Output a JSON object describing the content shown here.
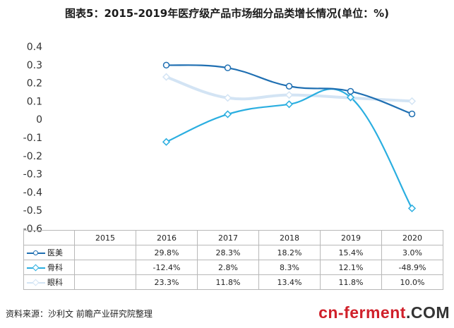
{
  "chart_data": {
    "type": "line",
    "title": "图表5：2015-2019年医疗级产品市场细分品类增长情况(单位：%)",
    "categories": [
      "2015",
      "2016",
      "2017",
      "2018",
      "2019",
      "2020"
    ],
    "yticks": [
      "0.4",
      "0.3",
      "0.2",
      "0.1",
      "0",
      "-0.1",
      "-0.2",
      "-0.3",
      "-0.4",
      "-0.5",
      "-0.6"
    ],
    "ylim": [
      -0.6,
      0.4
    ],
    "series": [
      {
        "name": "医美",
        "color": "#1f6fb2",
        "marker": "circle",
        "values": [
          null,
          0.298,
          0.283,
          0.182,
          0.154,
          0.03
        ],
        "labels": [
          "",
          "29.8%",
          "28.3%",
          "18.2%",
          "15.4%",
          "3.0%"
        ]
      },
      {
        "name": "骨科",
        "color": "#2aaee0",
        "marker": "diamond",
        "values": [
          null,
          -0.124,
          0.028,
          0.083,
          0.121,
          -0.489
        ],
        "labels": [
          "",
          "-12.4%",
          "2.8%",
          "8.3%",
          "12.1%",
          "-48.9%"
        ]
      },
      {
        "name": "眼科",
        "color": "#d3e4f4",
        "marker": "diamond",
        "values": [
          null,
          0.233,
          0.118,
          0.134,
          0.118,
          0.1
        ],
        "labels": [
          "",
          "23.3%",
          "11.8%",
          "13.4%",
          "11.8%",
          "10.0%"
        ]
      }
    ]
  },
  "footer": {
    "source": "资料来源：沙利文 前瞻产业研究院整理",
    "brand_red": "cn-ferment",
    "brand_dark": ".COM"
  }
}
